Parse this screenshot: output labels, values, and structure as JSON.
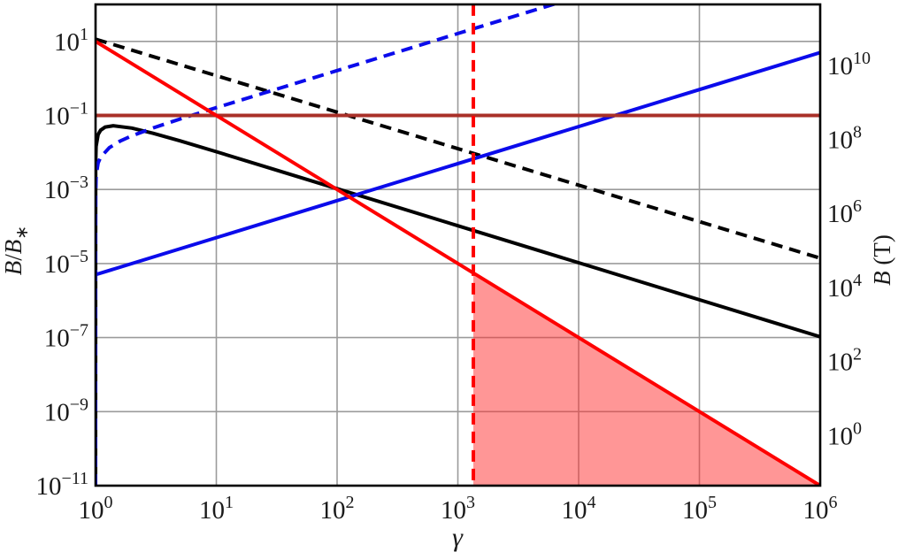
{
  "figure": {
    "background": "#ffffff",
    "frame_color": "#000000",
    "grid_color": "#9b9b9b",
    "tick_base": "10"
  },
  "chart_data": {
    "type": "line",
    "xlabel": "γ",
    "ylabel_left_text": "B/B∗",
    "ylabel_left_parts": [
      {
        "t": "B",
        "italic": true
      },
      {
        "t": "/",
        "italic": false
      },
      {
        "t": "B",
        "italic": true
      },
      {
        "t": "∗",
        "sub": true
      }
    ],
    "ylabel_right_text": "B (T)",
    "ylabel_right_parts": [
      {
        "t": "B",
        "italic": true
      },
      {
        "t": " (T)",
        "italic": false
      }
    ],
    "x_axis": {
      "scale": "log",
      "min": 1,
      "max": 1000000,
      "tick_exponents": [
        "0",
        "1",
        "2",
        "3",
        "4",
        "5",
        "6"
      ],
      "grid": true
    },
    "y_axis_left": {
      "scale": "log",
      "min": 1e-11,
      "max": 100,
      "tick_exponents": [
        "1",
        "−1",
        "−3",
        "−5",
        "−7",
        "−9",
        "−11"
      ],
      "tick_values": [
        10,
        0.1,
        0.001,
        1e-05,
        1e-07,
        1e-09,
        1e-11
      ],
      "grid": true
    },
    "y_axis_right": {
      "scale": "log",
      "tick_exponents": [
        "10",
        "8",
        "6",
        "4",
        "2",
        "0"
      ],
      "tick_values_tesla": [
        10000000000.0,
        100000000.0,
        1000000.0,
        10000.0,
        100.0,
        1.0
      ],
      "tick_positions_left_scale": [
        2.27,
        0.0227,
        0.000227,
        2.27e-06,
        2.27e-08,
        2.27e-10
      ]
    },
    "series": [
      {
        "name": "black-dashed",
        "color": "#000000",
        "style": "dashed",
        "width": 4,
        "points": [
          [
            1,
            11.5
          ],
          [
            1000000,
            1.4e-05
          ]
        ]
      },
      {
        "name": "black-solid",
        "color": "#000000",
        "style": "solid",
        "width": 4,
        "points": [
          [
            1,
            1e-11
          ],
          [
            1.001,
            0.0047
          ],
          [
            1.01,
            0.0146
          ],
          [
            1.05,
            0.0305
          ],
          [
            1.1,
            0.0398
          ],
          [
            1.2,
            0.0484
          ],
          [
            1.4,
            0.0525
          ],
          [
            2,
            0.0455
          ],
          [
            3,
            0.033
          ],
          [
            5,
            0.0206
          ],
          [
            10,
            0.01045
          ],
          [
            30,
            0.0035
          ],
          [
            100,
            0.00105
          ],
          [
            1000,
            0.000105
          ],
          [
            10000,
            1.05e-05
          ],
          [
            100000,
            1.05e-06
          ],
          [
            1000000,
            1.05e-07
          ]
        ]
      },
      {
        "name": "blue-dashed",
        "color": "#0b0beb",
        "style": "dashed",
        "width": 4,
        "points": [
          [
            1,
            1e-11
          ],
          [
            1.0000001,
            7.3e-06
          ],
          [
            1.00001,
            7.3e-05
          ],
          [
            1.001,
            0.00073
          ],
          [
            1.01,
            0.00231
          ],
          [
            1.05,
            0.00521
          ],
          [
            1.1,
            0.00747
          ],
          [
            1.3,
            0.0135
          ],
          [
            1.6,
            0.0204
          ],
          [
            2,
            0.0282
          ],
          [
            3,
            0.0461
          ],
          [
            5,
            0.0799
          ],
          [
            10,
            0.162
          ],
          [
            30,
            0.489
          ],
          [
            100,
            1.63
          ],
          [
            1000,
            16.3
          ],
          [
            7000,
            114
          ]
        ]
      },
      {
        "name": "blue-solid",
        "color": "#0b0beb",
        "style": "solid",
        "width": 4,
        "points": [
          [
            1,
            5e-06
          ],
          [
            1000000,
            5
          ]
        ]
      },
      {
        "name": "darkred-horizontal",
        "color": "#a93028",
        "style": "solid",
        "width": 4,
        "points": [
          [
            1,
            0.1
          ],
          [
            1000000,
            0.1
          ]
        ]
      },
      {
        "name": "red-solid",
        "color": "#fe0000",
        "style": "solid",
        "width": 4,
        "points": [
          [
            1,
            10
          ],
          [
            1000000,
            1e-11
          ]
        ]
      },
      {
        "name": "red-dashed-vertical",
        "color": "#fe0000",
        "style": "dashed",
        "width": 4,
        "points": [
          [
            1343,
            100
          ],
          [
            1343,
            1e-11
          ]
        ]
      }
    ],
    "shaded_region": {
      "name": "red-shaded-triangle",
      "color": "rgba(255,45,45,0.5)",
      "points": [
        [
          1343,
          5.54e-06
        ],
        [
          1343,
          1e-11
        ],
        [
          1000000,
          1e-11
        ]
      ]
    },
    "legend": null,
    "title": ""
  }
}
